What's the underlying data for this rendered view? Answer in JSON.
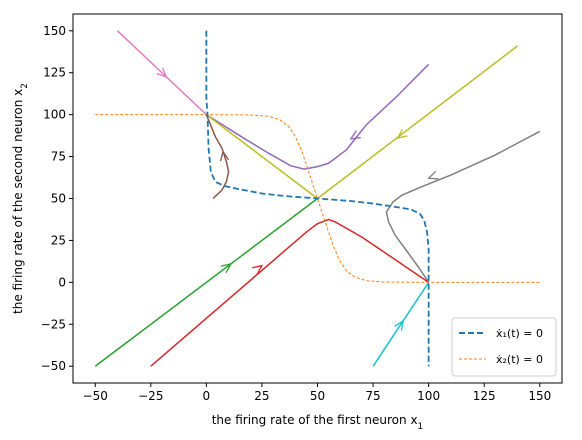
{
  "chart_data": {
    "type": "line",
    "title": "",
    "xlabel": "the firing rate of the first neuron x",
    "xlabel_sub": "1",
    "ylabel": "the firing rate of the second neuron x",
    "ylabel_sub": "2",
    "xlim": [
      -60,
      160
    ],
    "ylim": [
      -60,
      160
    ],
    "xticks": [
      -50,
      -25,
      0,
      25,
      50,
      75,
      100,
      125,
      150
    ],
    "yticks": [
      -50,
      -25,
      0,
      25,
      50,
      75,
      100,
      125,
      150
    ],
    "grid": false,
    "legend_position": "bottom-right",
    "legend": [
      {
        "label": "ẋ₁(t) = 0",
        "color": "#1f77b4",
        "style": "dashed"
      },
      {
        "label": "ẋ₂(t) = 0",
        "color": "#ff7f0e",
        "style": "dashed"
      }
    ],
    "nullclines": [
      {
        "color": "#1f77b4",
        "points": [
          [
            0,
            150
          ],
          [
            0,
            110
          ],
          [
            0.5,
            100
          ],
          [
            1,
            80
          ],
          [
            2,
            66
          ],
          [
            4,
            60
          ],
          [
            8,
            57.5
          ],
          [
            15,
            55.5
          ],
          [
            25,
            53
          ],
          [
            35,
            51.5
          ],
          [
            45,
            50.5
          ],
          [
            50,
            50
          ],
          [
            55,
            49.5
          ],
          [
            65,
            48.5
          ],
          [
            75,
            47
          ],
          [
            85,
            45
          ],
          [
            92,
            43.5
          ],
          [
            96,
            41
          ],
          [
            98,
            37
          ],
          [
            99.3,
            30
          ],
          [
            100,
            20
          ],
          [
            100,
            0
          ],
          [
            100,
            -50
          ]
        ]
      },
      {
        "color": "#ff7f0e",
        "points": [
          [
            -50,
            100
          ],
          [
            0,
            100
          ],
          [
            20,
            99.8
          ],
          [
            28,
            99
          ],
          [
            33,
            97
          ],
          [
            37,
            93
          ],
          [
            40,
            87
          ],
          [
            43,
            78
          ],
          [
            46,
            66
          ],
          [
            48,
            58
          ],
          [
            50,
            50
          ],
          [
            52,
            42
          ],
          [
            54,
            34
          ],
          [
            57,
            22
          ],
          [
            60,
            13
          ],
          [
            63,
            7
          ],
          [
            67,
            3
          ],
          [
            72,
            1
          ],
          [
            80,
            0.2
          ],
          [
            100,
            0
          ],
          [
            150,
            0
          ]
        ]
      }
    ],
    "series": [
      {
        "color": "#e377c2",
        "points": [
          [
            -40,
            150
          ],
          [
            0,
            100
          ]
        ],
        "arrows": [
          [
            -20,
            125,
            -18,
            122.5
          ]
        ]
      },
      {
        "color": "#9467bd",
        "points": [
          [
            100,
            130
          ],
          [
            85,
            110
          ],
          [
            72,
            94
          ],
          [
            63,
            79
          ],
          [
            55,
            71
          ],
          [
            50,
            69
          ],
          [
            44,
            67.5
          ],
          [
            38,
            69.5
          ],
          [
            28,
            77
          ],
          [
            18,
            85
          ],
          [
            0,
            100
          ]
        ],
        "arrows": [
          [
            68,
            88,
            65,
            85.5
          ]
        ]
      },
      {
        "color": "#bcbd22",
        "points": [
          [
            140,
            141
          ],
          [
            50,
            50
          ],
          [
            0,
            100
          ]
        ],
        "arrows": [
          [
            89,
            89,
            86,
            86
          ]
        ]
      },
      {
        "color": "#8c564b",
        "points": [
          [
            3,
            50
          ],
          [
            7,
            55
          ],
          [
            9,
            60
          ],
          [
            10,
            66
          ],
          [
            9,
            72
          ],
          [
            7,
            80
          ],
          [
            4,
            87
          ],
          [
            0,
            100
          ]
        ],
        "arrows": [
          [
            8,
            74,
            7.5,
            78
          ]
        ]
      },
      {
        "color": "#7f7f7f",
        "points": [
          [
            150,
            90
          ],
          [
            130,
            76
          ],
          [
            110,
            64
          ],
          [
            95,
            56
          ],
          [
            88,
            52
          ],
          [
            84,
            48
          ],
          [
            81,
            42
          ],
          [
            82,
            36
          ],
          [
            85,
            28
          ],
          [
            90,
            19
          ],
          [
            96,
            8
          ],
          [
            100,
            0
          ]
        ],
        "arrows": [
          [
            102,
            63,
            100,
            62
          ]
        ]
      },
      {
        "color": "#2ca02c",
        "points": [
          [
            -50,
            -50
          ],
          [
            50,
            50
          ]
        ],
        "arrows": [
          [
            9,
            9,
            11,
            11
          ]
        ]
      },
      {
        "color": "#d62728",
        "points": [
          [
            -25,
            -50
          ],
          [
            45,
            30
          ],
          [
            50,
            35
          ],
          [
            55,
            37.5
          ],
          [
            58,
            36
          ],
          [
            70,
            27
          ],
          [
            100,
            0
          ]
        ],
        "arrows": [
          [
            23,
            8,
            25,
            10
          ]
        ]
      },
      {
        "color": "#17becf",
        "points": [
          [
            75,
            -50
          ],
          [
            100,
            0
          ]
        ],
        "arrows": [
          [
            87,
            -26,
            88.5,
            -23
          ]
        ]
      }
    ]
  }
}
